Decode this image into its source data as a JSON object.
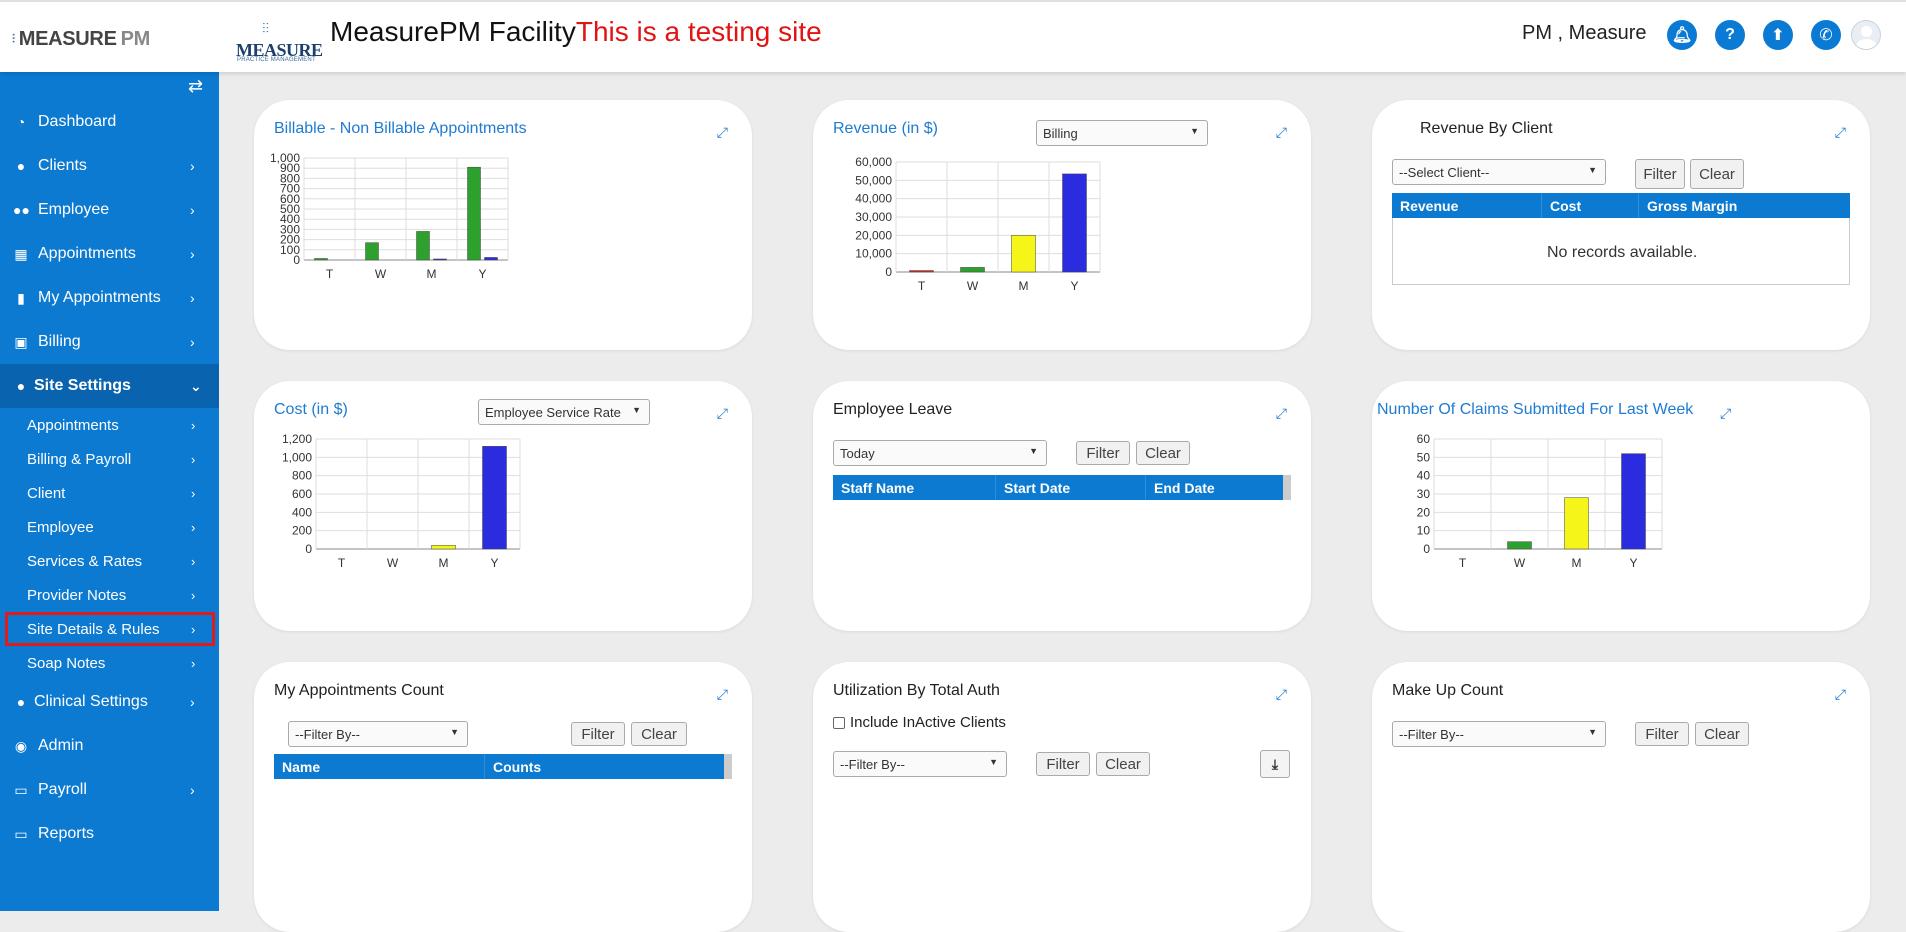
{
  "header": {
    "brand_prefix": "MEASURE",
    "brand_suffix": "PM",
    "logo_word": "MEASURE",
    "logo_sub": "PRACTICE MANAGEMENT",
    "title": "MeasurePM Facility",
    "warning": "This is a testing site",
    "user_name": "PM , Measure",
    "icons": [
      "bell-icon",
      "help-icon",
      "upload-icon",
      "phone-icon",
      "user-avatar"
    ]
  },
  "sidebar": {
    "toggle_icon": "swap-icon",
    "items": [
      {
        "label": "Dashboard",
        "icon": "dashboard-icon"
      },
      {
        "label": "Clients",
        "icon": "user-icon"
      },
      {
        "label": "Employee",
        "icon": "users-icon"
      },
      {
        "label": "Appointments",
        "icon": "calendar-icon"
      },
      {
        "label": "My Appointments",
        "icon": "book-icon"
      },
      {
        "label": "Billing",
        "icon": "money-icon"
      },
      {
        "label": "Site Settings",
        "icon": "user-icon"
      },
      {
        "label": "Clinical Settings",
        "icon": "user-icon"
      },
      {
        "label": "Admin",
        "icon": "user-circle-icon"
      },
      {
        "label": "Payroll",
        "icon": "credit-card-icon"
      },
      {
        "label": "Reports",
        "icon": "credit-card-icon"
      }
    ],
    "sub_items": [
      {
        "label": "Appointments"
      },
      {
        "label": "Billing & Payroll"
      },
      {
        "label": "Client"
      },
      {
        "label": "Employee"
      },
      {
        "label": "Services & Rates"
      },
      {
        "label": "Provider Notes"
      },
      {
        "label": "Site Details & Rules"
      },
      {
        "label": "Soap Notes"
      }
    ]
  },
  "cards": {
    "billable": {
      "title": "Billable - Non Billable Appointments"
    },
    "revenue": {
      "title": "Revenue (in $)",
      "dropdown": "Billing"
    },
    "revenue_client": {
      "title": "Revenue By Client",
      "dropdown": "--Select Client--",
      "filter": "Filter",
      "clear": "Clear",
      "cols": [
        "Revenue",
        "Cost",
        "Gross Margin"
      ],
      "empty": "No records available."
    },
    "cost": {
      "title": "Cost (in $)",
      "dropdown": "Employee Service Rate"
    },
    "leave": {
      "title": "Employee Leave",
      "dropdown": "Today",
      "filter": "Filter",
      "clear": "Clear",
      "cols": [
        "Staff Name",
        "Start Date",
        "End Date"
      ]
    },
    "claims": {
      "title": "Number Of Claims Submitted For Last Week"
    },
    "appt_count": {
      "title": "My Appointments Count",
      "dropdown": "--Filter By--",
      "filter": "Filter",
      "clear": "Clear",
      "cols": [
        "Name",
        "Counts"
      ]
    },
    "utilization": {
      "title": "Utilization By Total Auth",
      "checkbox": "Include InActive Clients",
      "dropdown": "--Filter By--",
      "filter": "Filter",
      "clear": "Clear"
    },
    "makeup": {
      "title": "Make Up Count",
      "dropdown": "--Filter By--",
      "filter": "Filter",
      "clear": "Clear"
    }
  },
  "chart_data": [
    {
      "type": "bar",
      "title": "Billable - Non Billable Appointments",
      "categories": [
        "T",
        "W",
        "M",
        "Y"
      ],
      "series": [
        {
          "values": [
            15,
            170,
            280,
            910
          ],
          "color": "#2ea02e"
        },
        {
          "values": [
            0,
            0,
            10,
            25
          ],
          "color": "#2b2be0"
        }
      ],
      "ylim": [
        0,
        1000
      ],
      "yticks": [
        "0",
        "100",
        "200",
        "300",
        "400",
        "500",
        "600",
        "700",
        "800",
        "900",
        "1,000"
      ],
      "grid": true
    },
    {
      "type": "bar",
      "title": "Revenue (in $)",
      "categories": [
        "T",
        "W",
        "M",
        "Y"
      ],
      "values": [
        800,
        2500,
        20000,
        53500
      ],
      "colors": [
        "#e02020",
        "#2ea02e",
        "#f5f51a",
        "#2b2be0"
      ],
      "ylim": [
        0,
        60000
      ],
      "yticks": [
        "0",
        "10,000",
        "20,000",
        "30,000",
        "40,000",
        "50,000",
        "60,000"
      ],
      "grid": true
    },
    {
      "type": "bar",
      "title": "Cost (in $)",
      "categories": [
        "T",
        "W",
        "M",
        "Y"
      ],
      "values": [
        0,
        0,
        40,
        1120
      ],
      "colors": [
        "#e02020",
        "#2ea02e",
        "#f5f51a",
        "#2b2be0"
      ],
      "ylim": [
        0,
        1200
      ],
      "yticks": [
        "0",
        "200",
        "400",
        "600",
        "800",
        "1,000",
        "1,200"
      ],
      "grid": true
    },
    {
      "type": "bar",
      "title": "Number Of Claims Submitted For Last Week",
      "categories": [
        "T",
        "W",
        "M",
        "Y"
      ],
      "values": [
        0,
        4,
        28,
        52
      ],
      "colors": [
        "#e02020",
        "#2ea02e",
        "#f5f51a",
        "#2b2be0"
      ],
      "ylim": [
        0,
        60
      ],
      "yticks": [
        "0",
        "10",
        "20",
        "30",
        "40",
        "50",
        "60"
      ],
      "grid": true
    }
  ]
}
